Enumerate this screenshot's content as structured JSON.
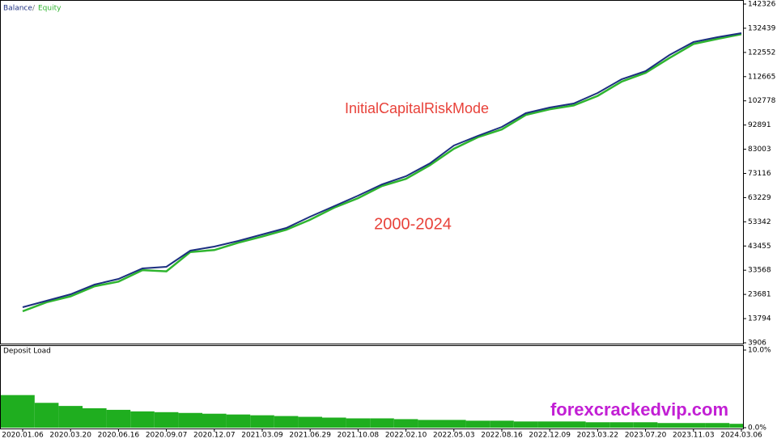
{
  "chart_data": [
    {
      "type": "line",
      "legend": [
        "chart_data.0.series.0.name",
        "chart_data.0.series.1.name"
      ],
      "legend_separator": "/",
      "categories": [
        "2020.01.06",
        null,
        "2020.03.20",
        null,
        "2020.06.16",
        null,
        "2020.09.07",
        null,
        "2020.12.07",
        null,
        "2021.03.09",
        null,
        "2021.06.29",
        null,
        "2021.10.08",
        null,
        "2022.02.10",
        null,
        "2022.05.03",
        null,
        "2022.08.16",
        null,
        "2022.12.09",
        null,
        "2023.03.22",
        null,
        "2023.07.20",
        null,
        "2023.11.03",
        null,
        "2024.03.06"
      ],
      "series": [
        {
          "name": "Balance",
          "color": "#1c2f80",
          "values": [
            18426,
            21069,
            23712,
            27677,
            29990,
            34285,
            34946,
            41554,
            43206,
            45519,
            48162,
            50805,
            55431,
            59726,
            64021,
            68647,
            71951,
            77237,
            84506,
            88471,
            92105,
            97722,
            100034,
            101686,
            105982,
            111599,
            114903,
            121511,
            126797,
            128779,
            130432
          ]
        },
        {
          "name": "Equity",
          "color": "#2fb52f",
          "values": [
            16800,
            20500,
            22900,
            27000,
            28900,
            33600,
            33100,
            41000,
            41800,
            44800,
            47300,
            50100,
            54200,
            59100,
            63000,
            68000,
            70900,
            76500,
            83200,
            87900,
            91100,
            97000,
            99300,
            100900,
            104800,
            110600,
            114200,
            120300,
            126000,
            128100,
            130000
          ]
        }
      ],
      "ylim": [
        3906,
        142326
      ],
      "yticks": [
        142326,
        132439,
        122552,
        112665,
        102778,
        92891,
        83003,
        73116,
        63229,
        53342,
        43455,
        33568,
        23681,
        13794,
        3906
      ],
      "annotations": [
        "InitialCapitalRiskMode",
        "2000-2024"
      ]
    },
    {
      "type": "bar",
      "title": "Deposit Load",
      "color": "#1fae1f",
      "values": [
        4.2,
        3.2,
        2.8,
        2.5,
        2.3,
        2.1,
        2.0,
        1.9,
        1.8,
        1.7,
        1.6,
        1.5,
        1.4,
        1.3,
        1.2,
        1.2,
        1.1,
        1.0,
        1.0,
        0.9,
        0.9,
        0.8,
        0.8,
        0.8,
        0.7,
        0.7,
        0.7,
        0.6,
        0.6,
        0.6,
        0.5
      ],
      "ylim": [
        0,
        10
      ],
      "yticks": [
        {
          "value": 10,
          "label": "10.0%"
        },
        {
          "value": 0,
          "label": "0.0%"
        }
      ],
      "watermark": "forexcrackedvip.com"
    }
  ]
}
